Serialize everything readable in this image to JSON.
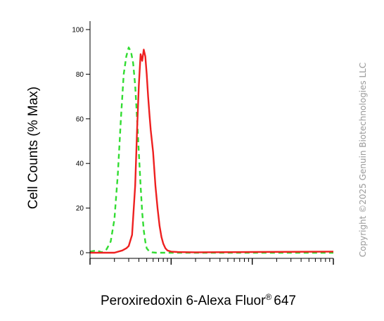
{
  "chart_data": {
    "type": "line",
    "ylabel": "Cell Counts (% Max)",
    "xlabel": "Peroxiredoxin 6-Alexa Fluor",
    "xlabel_superscript": "®",
    "xlabel_suffix": "647",
    "x_scale": "log",
    "xlim": [
      10,
      10000
    ],
    "ylim": [
      0,
      100
    ],
    "y_ticks": [
      "0",
      "20",
      "40",
      "60",
      "80",
      "100"
    ],
    "x_tick_labels_visible": false,
    "grid": false,
    "series": [
      {
        "color": "#32dc32",
        "style": "dashed",
        "x": [
          10,
          12,
          14,
          16,
          18,
          20,
          22,
          24,
          26,
          28,
          30,
          32,
          34,
          36,
          38,
          40,
          42,
          44,
          46,
          48,
          50,
          54,
          58,
          65,
          80,
          120,
          10000
        ],
        "y": [
          0.5,
          1,
          0.2,
          1.5,
          5,
          15,
          35,
          60,
          80,
          88,
          92,
          90,
          85,
          75,
          60,
          45,
          30,
          18,
          10,
          5,
          2,
          0.5,
          0.2,
          0,
          0,
          0,
          0
        ]
      },
      {
        "color": "#ee2020",
        "style": "solid",
        "x": [
          10,
          20,
          25,
          28,
          30,
          33,
          36,
          38,
          40,
          42,
          44,
          46,
          48,
          50,
          52,
          54,
          56,
          60,
          64,
          68,
          72,
          76,
          80,
          85,
          90,
          100,
          120,
          200,
          1000,
          10000
        ],
        "y": [
          0,
          0,
          1,
          2,
          3,
          8,
          30,
          55,
          75,
          89,
          86,
          91,
          88,
          80,
          70,
          62,
          55,
          45,
          30,
          20,
          12,
          7,
          4,
          2,
          1,
          0.5,
          0.3,
          0.2,
          0.3,
          0.5
        ]
      }
    ]
  },
  "watermark": "Copyright ©2025 Genuin Biotechnologies LLC"
}
